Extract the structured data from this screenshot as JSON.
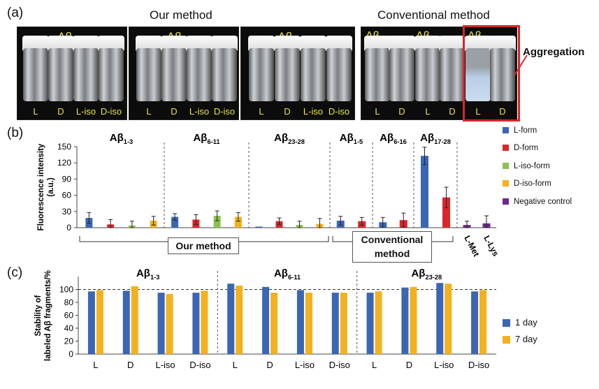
{
  "panel_labels": {
    "a": "(a)",
    "b": "(b)",
    "c": "(c)"
  },
  "panel_a": {
    "headers": {
      "our_method": "Our method",
      "conventional_method": "Conventional method"
    },
    "annotation": "Aggregation",
    "photos": [
      {
        "title_main": "Aβ",
        "title_sub": "1-3",
        "vials": [
          "L",
          "D",
          "L-iso",
          "D-iso"
        ]
      },
      {
        "title_main": "Aβ",
        "title_sub": "6-11",
        "vials": [
          "L",
          "D",
          "L-iso",
          "D-iso"
        ]
      },
      {
        "title_main": "Aβ",
        "title_sub": "23-28",
        "vials": [
          "L",
          "D",
          "L-iso",
          "D-iso"
        ]
      }
    ],
    "conventional_photo": {
      "groups": [
        {
          "title_main": "Aβ",
          "title_sub": "1-5",
          "vials": [
            "L",
            "D"
          ]
        },
        {
          "title_main": "Aβ",
          "title_sub": "6-16",
          "vials": [
            "L",
            "D"
          ]
        },
        {
          "title_main": "Aβ",
          "title_sub": "17-28",
          "vials": [
            "L",
            "D"
          ],
          "aggregated": true
        }
      ]
    },
    "colors": {
      "highlight": "#d8262b",
      "label_text": "#ece43a"
    }
  },
  "panel_b_labels": {
    "brackets": {
      "our_method": "Our method",
      "conventional_line1": "Conventional",
      "conventional_line2": "method"
    }
  },
  "chart_data": [
    {
      "type": "bar",
      "ylabel": "Fluorescence intensity (a.u.)",
      "ylim": [
        0,
        150
      ],
      "yticks": [
        0,
        30,
        60,
        90,
        120,
        150
      ],
      "grid": false,
      "legend_position": "right",
      "series_colors": {
        "L-form": "#3a66b3",
        "D-form": "#d9262b",
        "L-iso-form": "#8cc152",
        "D-iso-form": "#f2b11d",
        "Negative control": "#6a2c8a"
      },
      "legend": [
        "L-form",
        "D-form",
        "L-iso-form",
        "D-iso-form",
        "Negative control"
      ],
      "groups": [
        {
          "label_main": "Aβ",
          "label_sub": "1-3",
          "method": "our",
          "bars": [
            {
              "series": "L-form",
              "value": 18,
              "error": 10
            },
            {
              "series": "D-form",
              "value": 6,
              "error": 9
            },
            {
              "series": "L-iso-form",
              "value": 4,
              "error": 8
            },
            {
              "series": "D-iso-form",
              "value": 13,
              "error": 8
            }
          ]
        },
        {
          "label_main": "Aβ",
          "label_sub": "6-11",
          "method": "our",
          "bars": [
            {
              "series": "L-form",
              "value": 20,
              "error": 6
            },
            {
              "series": "D-form",
              "value": 15,
              "error": 9
            },
            {
              "series": "L-iso-form",
              "value": 22,
              "error": 9
            },
            {
              "series": "D-iso-form",
              "value": 20,
              "error": 8
            }
          ]
        },
        {
          "label_main": "Aβ",
          "label_sub": "23-28",
          "method": "our",
          "bars": [
            {
              "series": "L-form",
              "value": 2,
              "error": 0
            },
            {
              "series": "D-form",
              "value": 12,
              "error": 6
            },
            {
              "series": "L-iso-form",
              "value": 5,
              "error": 7
            },
            {
              "series": "D-iso-form",
              "value": 7,
              "error": 10
            }
          ]
        },
        {
          "label_main": "Aβ",
          "label_sub": "1-5",
          "method": "conventional",
          "bars": [
            {
              "series": "L-form",
              "value": 13,
              "error": 8
            },
            {
              "series": "D-form",
              "value": 12,
              "error": 7
            }
          ]
        },
        {
          "label_main": "Aβ",
          "label_sub": "6-16",
          "method": "conventional",
          "bars": [
            {
              "series": "L-form",
              "value": 10,
              "error": 9
            },
            {
              "series": "D-form",
              "value": 14,
              "error": 13
            }
          ]
        },
        {
          "label_main": "Aβ",
          "label_sub": "17-28",
          "method": "conventional",
          "bars": [
            {
              "series": "L-form",
              "value": 133,
              "error": 16
            },
            {
              "series": "D-form",
              "value": 56,
              "error": 19
            }
          ]
        },
        {
          "label_main": "",
          "label_sub": "",
          "method": "control",
          "categories": [
            "L-Met",
            "L-Lys"
          ],
          "bars": [
            {
              "series": "Negative control",
              "value": 5,
              "error": 7
            },
            {
              "series": "Negative control",
              "value": 8,
              "error": 14
            }
          ]
        }
      ]
    },
    {
      "type": "bar",
      "ylabel": "Stability of labeled Aβ fragments/%",
      "ylim": [
        0,
        120
      ],
      "yticks": [
        0,
        20,
        40,
        60,
        80,
        100
      ],
      "reference_line": 100,
      "grid": false,
      "legend_position": "right",
      "legend": [
        "1 day",
        "7 day"
      ],
      "series_colors": {
        "1 day": "#3a66b3",
        "7 day": "#f2b11d"
      },
      "groups": [
        {
          "label_main": "Aβ",
          "label_sub": "1-3",
          "categories": [
            "L",
            "D",
            "L-iso",
            "D-iso"
          ],
          "series": [
            {
              "name": "1 day",
              "values": [
                97,
                98,
                95,
                95
              ]
            },
            {
              "name": "7 day",
              "values": [
                99,
                105,
                93,
                98
              ]
            }
          ]
        },
        {
          "label_main": "Aβ",
          "label_sub": "6-11",
          "categories": [
            "L",
            "D",
            "L-iso",
            "D-iso"
          ],
          "series": [
            {
              "name": "1 day",
              "values": [
                109,
                104,
                99,
                95
              ]
            },
            {
              "name": "7 day",
              "values": [
                106,
                95,
                95,
                95
              ]
            }
          ]
        },
        {
          "label_main": "Aβ",
          "label_sub": "23-28",
          "categories": [
            "L",
            "D",
            "L-iso",
            "D-iso"
          ],
          "series": [
            {
              "name": "1 day",
              "values": [
                95,
                103,
                110,
                97
              ]
            },
            {
              "name": "7 day",
              "values": [
                97,
                104,
                109,
                99
              ]
            }
          ]
        }
      ]
    }
  ]
}
